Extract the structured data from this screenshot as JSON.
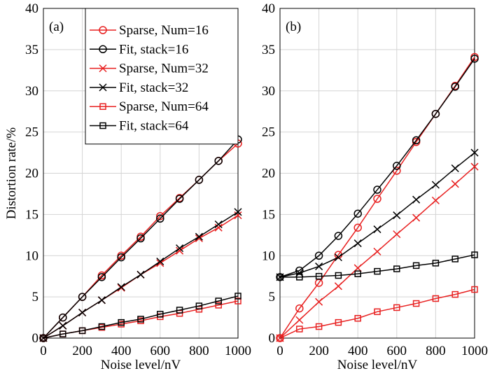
{
  "chart_data": [
    {
      "type": "line",
      "annotation": "(a)",
      "xlabel": "Noise level/nV",
      "ylabel": "Distortion rate/%",
      "x": [
        0,
        100,
        200,
        300,
        400,
        500,
        600,
        700,
        800,
        900,
        1000
      ],
      "xlim": [
        0,
        1000
      ],
      "xticks": [
        0,
        200,
        400,
        600,
        800,
        1000
      ],
      "ylim": [
        0,
        40
      ],
      "yticks": [
        0,
        5,
        10,
        15,
        20,
        25,
        30,
        35,
        40
      ],
      "grid": true,
      "legend": "upper left",
      "series": [
        {
          "name": "Sparse, Num=16",
          "color": "#e82020",
          "marker": "circle",
          "values": [
            0,
            2.5,
            5.0,
            7.6,
            10.0,
            12.3,
            14.8,
            17.0,
            19.2,
            21.5,
            23.6
          ]
        },
        {
          "name": "Fit, stack=16",
          "color": "#000000",
          "marker": "circle",
          "values": [
            0,
            2.5,
            5.0,
            7.4,
            9.8,
            12.1,
            14.5,
            16.9,
            19.2,
            21.5,
            24.1
          ]
        },
        {
          "name": "Sparse, Num=32",
          "color": "#e82020",
          "marker": "x",
          "values": [
            0,
            1.5,
            3.1,
            4.6,
            6.1,
            7.7,
            9.1,
            10.6,
            12.1,
            13.4,
            14.9
          ]
        },
        {
          "name": "Fit, stack=32",
          "color": "#000000",
          "marker": "x",
          "values": [
            0,
            1.5,
            3.1,
            4.6,
            6.2,
            7.7,
            9.3,
            10.9,
            12.3,
            13.8,
            15.3
          ]
        },
        {
          "name": "Sparse, Num=64",
          "color": "#e82020",
          "marker": "square",
          "values": [
            0,
            0.5,
            0.9,
            1.3,
            1.7,
            2.1,
            2.6,
            3.0,
            3.5,
            4.0,
            4.5
          ]
        },
        {
          "name": "Fit, stack=64",
          "color": "#000000",
          "marker": "square",
          "values": [
            0,
            0.5,
            0.9,
            1.4,
            1.9,
            2.3,
            2.9,
            3.4,
            3.9,
            4.5,
            5.1
          ]
        }
      ]
    },
    {
      "type": "line",
      "annotation": "(b)",
      "xlabel": "Noise level/nV",
      "x": [
        0,
        100,
        200,
        300,
        400,
        500,
        600,
        700,
        800,
        900,
        1000
      ],
      "xlim": [
        0,
        1000
      ],
      "xticks": [
        0,
        200,
        400,
        600,
        800,
        1000
      ],
      "ylim": [
        0,
        40
      ],
      "yticks": [
        0,
        5,
        10,
        15,
        20,
        25,
        30,
        35,
        40
      ],
      "grid": true,
      "series": [
        {
          "color": "#e82020",
          "marker": "circle",
          "values": [
            0,
            3.6,
            6.7,
            10.1,
            13.4,
            16.9,
            20.3,
            23.8,
            27.2,
            30.6,
            34.1
          ]
        },
        {
          "color": "#000000",
          "marker": "circle",
          "values": [
            7.4,
            8.2,
            10.0,
            12.4,
            15.1,
            18.0,
            20.9,
            24.0,
            27.2,
            30.5,
            33.9
          ]
        },
        {
          "color": "#e82020",
          "marker": "x",
          "values": [
            0,
            2.2,
            4.4,
            6.3,
            8.5,
            10.5,
            12.6,
            14.6,
            16.7,
            18.7,
            20.8
          ]
        },
        {
          "color": "#000000",
          "marker": "x",
          "values": [
            7.4,
            7.9,
            8.7,
            9.8,
            11.5,
            13.2,
            14.9,
            16.8,
            18.6,
            20.6,
            22.5
          ]
        },
        {
          "color": "#e82020",
          "marker": "square",
          "values": [
            0,
            1.1,
            1.4,
            1.9,
            2.4,
            3.2,
            3.7,
            4.2,
            4.8,
            5.3,
            5.9
          ]
        },
        {
          "color": "#000000",
          "marker": "square",
          "values": [
            7.4,
            7.4,
            7.5,
            7.6,
            7.8,
            8.1,
            8.4,
            8.8,
            9.1,
            9.6,
            10.1
          ]
        }
      ]
    }
  ]
}
